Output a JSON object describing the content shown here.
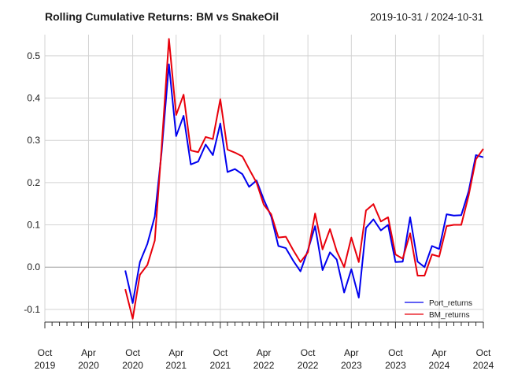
{
  "chart_data": {
    "type": "line",
    "title": "Rolling Cumulative Returns: BM vs SnakeOil",
    "date_range": "2019-10-31 / 2024-10-31",
    "xlim": [
      "2019-10-31",
      "2024-10-31"
    ],
    "ylim": [
      -0.13,
      0.55
    ],
    "y_ticks": [
      -0.1,
      0.0,
      0.1,
      0.2,
      0.3,
      0.4,
      0.5
    ],
    "y_tick_labels": [
      "-0.1",
      "0.0",
      "0.1",
      "0.2",
      "0.3",
      "0.4",
      "0.5"
    ],
    "x_ticks": [
      {
        "date": "2019-10-31",
        "month": "Oct",
        "year": "2019"
      },
      {
        "date": "2020-04-30",
        "month": "Apr",
        "year": "2020"
      },
      {
        "date": "2020-10-31",
        "month": "Oct",
        "year": "2020"
      },
      {
        "date": "2021-04-30",
        "month": "Apr",
        "year": "2021"
      },
      {
        "date": "2021-10-31",
        "month": "Oct",
        "year": "2021"
      },
      {
        "date": "2022-04-30",
        "month": "Apr",
        "year": "2022"
      },
      {
        "date": "2022-10-31",
        "month": "Oct",
        "year": "2022"
      },
      {
        "date": "2023-04-30",
        "month": "Apr",
        "year": "2023"
      },
      {
        "date": "2023-10-31",
        "month": "Oct",
        "year": "2023"
      },
      {
        "date": "2024-04-30",
        "month": "Apr",
        "year": "2024"
      },
      {
        "date": "2024-10-31",
        "month": "Oct",
        "year": "2024"
      }
    ],
    "grid": true,
    "legend_position": "bottom-right",
    "x": [
      "2020-09-30",
      "2020-10-31",
      "2020-11-30",
      "2020-12-31",
      "2021-01-31",
      "2021-02-28",
      "2021-03-31",
      "2021-04-30",
      "2021-05-31",
      "2021-06-30",
      "2021-07-31",
      "2021-08-31",
      "2021-09-30",
      "2021-10-31",
      "2021-11-30",
      "2021-12-31",
      "2022-01-31",
      "2022-02-28",
      "2022-03-31",
      "2022-04-30",
      "2022-05-31",
      "2022-06-30",
      "2022-07-31",
      "2022-08-31",
      "2022-09-30",
      "2022-10-31",
      "2022-11-30",
      "2022-12-31",
      "2023-01-31",
      "2023-02-28",
      "2023-03-31",
      "2023-04-30",
      "2023-05-31",
      "2023-06-30",
      "2023-07-31",
      "2023-08-31",
      "2023-09-30",
      "2023-10-31",
      "2023-11-30",
      "2023-12-31",
      "2024-01-31",
      "2024-02-29",
      "2024-03-31",
      "2024-04-30",
      "2024-05-31",
      "2024-06-30",
      "2024-07-31",
      "2024-08-31",
      "2024-09-30",
      "2024-10-31"
    ],
    "series": [
      {
        "name": "Port_returns",
        "color": "#0000ee",
        "values": [
          -0.008,
          -0.085,
          0.012,
          0.055,
          0.12,
          0.27,
          0.48,
          0.31,
          0.358,
          0.243,
          0.25,
          0.29,
          0.265,
          0.34,
          0.225,
          0.232,
          0.22,
          0.19,
          0.205,
          0.16,
          0.12,
          0.05,
          0.045,
          0.015,
          -0.01,
          0.04,
          0.097,
          -0.007,
          0.035,
          0.018,
          -0.06,
          -0.005,
          -0.072,
          0.093,
          0.113,
          0.087,
          0.1,
          0.012,
          0.013,
          0.118,
          0.013,
          0.0,
          0.05,
          0.043,
          0.125,
          0.122,
          0.123,
          0.18,
          0.265,
          0.26
        ]
      },
      {
        "name": "BM_returns",
        "color": "#e8000b",
        "values": [
          -0.052,
          -0.122,
          -0.018,
          0.005,
          0.063,
          0.28,
          0.54,
          0.36,
          0.408,
          0.276,
          0.272,
          0.308,
          0.303,
          0.397,
          0.278,
          0.271,
          0.262,
          0.232,
          0.2,
          0.148,
          0.125,
          0.07,
          0.072,
          0.04,
          0.012,
          0.035,
          0.127,
          0.042,
          0.09,
          0.038,
          0.0,
          0.07,
          0.012,
          0.134,
          0.149,
          0.108,
          0.118,
          0.03,
          0.02,
          0.08,
          -0.02,
          -0.02,
          0.03,
          0.025,
          0.097,
          0.1,
          0.1,
          0.17,
          0.255,
          0.28
        ]
      }
    ]
  }
}
